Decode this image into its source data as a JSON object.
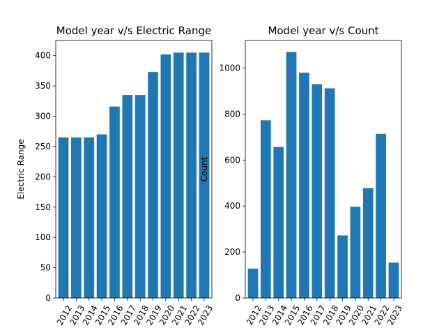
{
  "chart_data": [
    {
      "type": "bar",
      "title": "Model year v/s Electric Range",
      "xlabel": "",
      "ylabel": "Electric Range",
      "categories": [
        "2012",
        "2013",
        "2014",
        "2015",
        "2016",
        "2017",
        "2018",
        "2019",
        "2020",
        "2021",
        "2022",
        "2023"
      ],
      "values": [
        265,
        265,
        265,
        270,
        316,
        335,
        335,
        373,
        402,
        405,
        405,
        405
      ],
      "ylim": [
        0,
        425
      ],
      "yticks": [
        0,
        50,
        100,
        150,
        200,
        250,
        300,
        350,
        400
      ],
      "color": "#1f77b4"
    },
    {
      "type": "bar",
      "title": "Model year v/s Count",
      "xlabel": "",
      "ylabel": "Count",
      "categories": [
        "2012",
        "2013",
        "2014",
        "2015",
        "2016",
        "2017",
        "2018",
        "2019",
        "2020",
        "2021",
        "2022",
        "2023"
      ],
      "values": [
        128,
        773,
        657,
        1070,
        980,
        930,
        912,
        272,
        397,
        478,
        714,
        154
      ],
      "ylim": [
        0,
        1120
      ],
      "yticks": [
        0,
        200,
        400,
        600,
        800,
        1000
      ],
      "color": "#1f77b4"
    }
  ]
}
